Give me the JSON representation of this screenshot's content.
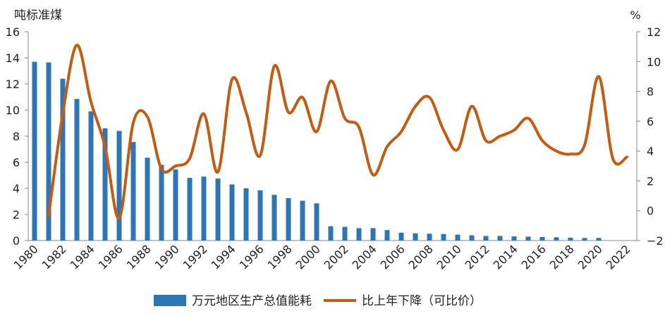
{
  "chart_data": {
    "type": "bar+line",
    "title": "",
    "left_axis": {
      "unit": "吨标准煤",
      "ylim": [
        0,
        16
      ],
      "ticks": [
        0,
        2,
        4,
        6,
        8,
        10,
        12,
        14,
        16
      ]
    },
    "right_axis": {
      "unit": "%",
      "ylim": [
        -2,
        12
      ],
      "ticks": [
        -2,
        0,
        2,
        4,
        6,
        8,
        10,
        12
      ]
    },
    "x_axis": {
      "xlim": [
        1980,
        2022
      ],
      "ticks": [
        1980,
        1982,
        1984,
        1986,
        1988,
        1990,
        1992,
        1994,
        1996,
        1998,
        2000,
        2002,
        2004,
        2006,
        2008,
        2010,
        2012,
        2014,
        2016,
        2018,
        2020,
        2022
      ]
    },
    "legend_position": "bottom",
    "bars": {
      "name": "万元地区生产总值能耗",
      "axis": "left",
      "color": "#2e75b6",
      "x": [
        1980,
        1981,
        1982,
        1983,
        1984,
        1985,
        1986,
        1987,
        1988,
        1989,
        1990,
        1991,
        1992,
        1993,
        1994,
        1995,
        1996,
        1997,
        1998,
        1999,
        2000,
        2001,
        2002,
        2003,
        2004,
        2005,
        2006,
        2007,
        2008,
        2009,
        2010,
        2011,
        2012,
        2013,
        2014,
        2015,
        2016,
        2017,
        2018,
        2019,
        2020,
        2021
      ],
      "values": [
        13.7,
        13.65,
        12.4,
        10.85,
        9.9,
        8.6,
        8.4,
        7.55,
        6.35,
        5.8,
        5.45,
        4.8,
        4.9,
        4.75,
        4.3,
        4.0,
        3.85,
        3.5,
        3.25,
        3.05,
        2.85,
        1.1,
        1.05,
        0.95,
        0.95,
        0.8,
        0.6,
        0.55,
        0.52,
        0.5,
        0.45,
        0.4,
        0.35,
        0.35,
        0.32,
        0.3,
        0.27,
        0.25,
        0.22,
        0.2,
        0.2,
        0.0
      ]
    },
    "line": {
      "name": "比上年下降（可比价）",
      "axis": "right",
      "color": "#c55a11",
      "x": [
        1981,
        1982,
        1983,
        1984,
        1985,
        1986,
        1987,
        1988,
        1989,
        1990,
        1991,
        1992,
        1993,
        1994,
        1995,
        1996,
        1997,
        1998,
        1999,
        2000,
        2001,
        2002,
        2003,
        2004,
        2005,
        2006,
        2007,
        2008,
        2009,
        2010,
        2011,
        2012,
        2013,
        2014,
        2015,
        2016,
        2017,
        2018,
        2019,
        2020,
        2021,
        2022
      ],
      "values": [
        -0.3,
        6.5,
        11.1,
        7.3,
        4.3,
        -0.5,
        5.9,
        6.3,
        2.8,
        3.0,
        3.5,
        6.5,
        2.6,
        8.8,
        6.6,
        3.7,
        9.7,
        6.6,
        7.6,
        5.3,
        8.7,
        6.2,
        5.6,
        2.4,
        4.3,
        5.3,
        7.0,
        7.6,
        5.4,
        4.1,
        7.0,
        4.7,
        5.0,
        5.4,
        6.2,
        4.7,
        4.0,
        3.8,
        4.4,
        9.0,
        3.5,
        3.6
      ]
    }
  }
}
